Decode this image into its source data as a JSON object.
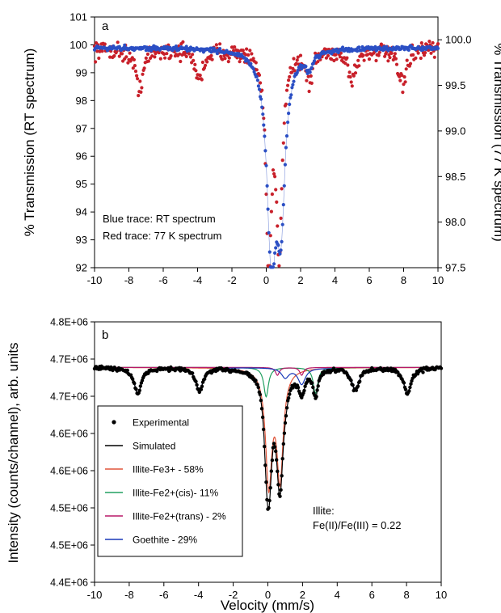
{
  "chart_data": [
    {
      "type": "scatter",
      "panel_label": "a",
      "xlabel": "",
      "ylabel": "% Transmission (RT spectrum)",
      "y2label": "% Transmission (77 K spectrum)",
      "xlim": [
        -10,
        10
      ],
      "ylim": [
        92,
        101
      ],
      "y2lim": [
        97.5,
        100.25
      ],
      "xticks": [
        -10,
        -8,
        -6,
        -4,
        -2,
        0,
        2,
        4,
        6,
        8,
        10
      ],
      "yticks": [
        92,
        93,
        94,
        95,
        96,
        97,
        98,
        99,
        100,
        101
      ],
      "y2ticks": [
        "97.5",
        "98.0",
        "98.5",
        "99.0",
        "99.5",
        "100.0"
      ],
      "annotations": [
        "Blue trace: RT spectrum",
        "Red trace: 77 K spectrum"
      ],
      "series": [
        {
          "color": "#2b4fc4",
          "axis": "left",
          "connected": true,
          "baseline": 99.9,
          "lines": [
            {
              "center": 0.3,
              "depth": 7.0,
              "width": 0.32
            },
            {
              "center": 0.85,
              "depth": 5.5,
              "width": 0.3
            },
            {
              "center": 2.5,
              "depth": 0.6,
              "width": 0.22
            }
          ],
          "noise": 0.07
        },
        {
          "color": "#c8202a",
          "axis": "right",
          "connected": false,
          "baseline": 99.9,
          "lines": [
            {
              "center": -7.4,
              "depth": 0.42,
              "width": 0.28
            },
            {
              "center": -3.9,
              "depth": 0.32,
              "width": 0.28
            },
            {
              "center": 0.15,
              "depth": 2.3,
              "width": 0.2
            },
            {
              "center": 0.75,
              "depth": 2.1,
              "width": 0.2
            },
            {
              "center": 2.5,
              "depth": 0.35,
              "width": 0.22
            },
            {
              "center": 5.0,
              "depth": 0.32,
              "width": 0.28
            },
            {
              "center": 7.9,
              "depth": 0.4,
              "width": 0.28
            }
          ],
          "noise": 0.08
        }
      ]
    },
    {
      "type": "line",
      "panel_label": "b",
      "xlabel": "Velocity (mm/s)",
      "ylabel": "Intensity (counts/channel), arb. units",
      "xlim": [
        -10,
        10
      ],
      "ylim": [
        4.4,
        4.8
      ],
      "xticks": [
        -10,
        -8,
        -6,
        -4,
        -2,
        0,
        2,
        4,
        6,
        8,
        10
      ],
      "yticks": [
        "4.4E+06",
        "4.5E+06",
        "4.5E+06",
        "4.6E+06",
        "4.6E+06",
        "4.7E+06",
        "4.7E+06",
        "4.8E+06"
      ],
      "annotation_lines": [
        "Illite:",
        "Fe(II)/Fe(III) = 0.22"
      ],
      "legend": {
        "position": "left",
        "entries": [
          {
            "label": "Experimental",
            "marker": "dot",
            "color": "#000000"
          },
          {
            "label": "Simulated",
            "marker": "line",
            "color": "#000000"
          },
          {
            "label": "Illite-Fe3+ - 58%",
            "marker": "line",
            "color": "#e0553a"
          },
          {
            "label": "Illite-Fe2+(cis)- 11%",
            "marker": "line",
            "color": "#22a060"
          },
          {
            "label": "Illite-Fe2+(trans) - 2%",
            "marker": "line",
            "color": "#b81868"
          },
          {
            "label": "Goethite - 29%",
            "marker": "line",
            "color": "#1838b8"
          }
        ]
      },
      "baseline": 4.73,
      "components": [
        {
          "name": "Illite-Fe3+ - 58%",
          "color": "#e0553a",
          "lines": [
            {
              "center": 0.05,
              "depth": 0.175,
              "width": 0.22
            },
            {
              "center": 0.7,
              "depth": 0.165,
              "width": 0.22
            }
          ]
        },
        {
          "name": "Illite-Fe2+(cis)- 11%",
          "color": "#22a060",
          "lines": [
            {
              "center": -0.1,
              "depth": 0.045,
              "width": 0.16
            },
            {
              "center": 2.75,
              "depth": 0.04,
              "width": 0.16
            }
          ]
        },
        {
          "name": "Illite-Fe2+(trans) - 2%",
          "color": "#b81868",
          "lines": [
            {
              "center": 0.55,
              "depth": 0.012,
              "width": 0.13
            },
            {
              "center": 1.95,
              "depth": 0.012,
              "width": 0.13
            }
          ]
        },
        {
          "name": "Goethite - 29%",
          "color": "#1838b8",
          "lines": [
            {
              "center": -7.5,
              "depth": 0.04,
              "width": 0.26
            },
            {
              "center": -3.95,
              "depth": 0.035,
              "width": 0.26
            },
            {
              "center": 1.0,
              "depth": 0.015,
              "width": 0.26
            },
            {
              "center": 1.95,
              "depth": 0.025,
              "width": 0.26
            },
            {
              "center": 5.05,
              "depth": 0.035,
              "width": 0.26
            },
            {
              "center": 8.05,
              "depth": 0.04,
              "width": 0.26
            }
          ]
        }
      ],
      "experimental_noise": 0.0025
    }
  ]
}
